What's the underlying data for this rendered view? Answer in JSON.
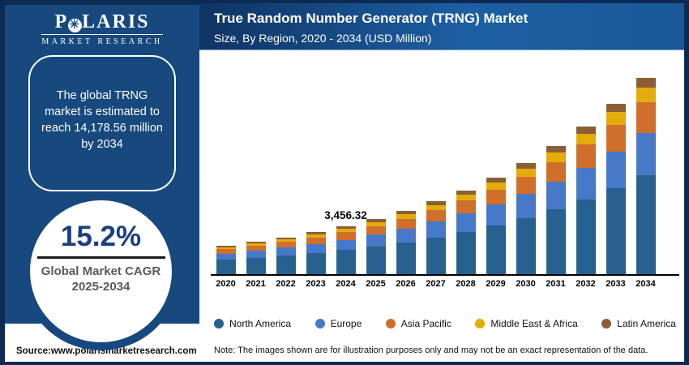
{
  "brand": {
    "logo_p1": "P",
    "logo_star": "✳",
    "logo_p2": "LARIS",
    "logo_subtitle": "MARKET RESEARCH"
  },
  "header": {
    "title": "True Random Number Generator (TRNG) Market",
    "subtitle": "Size, By Region, 2020 - 2034 (USD Million)"
  },
  "sidebar": {
    "callout_text": "The global TRNG market is estimated to reach 14,178.56 million by 2034",
    "cagr_value": "15.2%",
    "cagr_label_line1": "Global Market CAGR",
    "cagr_label_line2": "2025-2034"
  },
  "footer": {
    "source": "Source:www.polarismarketresearch.com",
    "note": "Note: The images shown are for illustration purposes only and may not be an exact representation of the data."
  },
  "colors": {
    "frame": "#0d2b52",
    "sidebar_bg": "#17497e",
    "panel_bg": "#ffffff",
    "banner_gradient_left": "#103463",
    "banner_gradient_right": "#1a5999",
    "cagr_navy": "#1c3f7d",
    "cagr_gray": "#58595b",
    "axis_black": "#000000"
  },
  "chart_data": {
    "type": "bar",
    "stacked": true,
    "title": "True Random Number Generator (TRNG) Market",
    "subtitle": "Size, By Region, 2020 - 2034 (USD Million)",
    "unit": "USD Million",
    "grid": "off",
    "legend_position": "bottom",
    "ylim": [
      0,
      14500
    ],
    "categories": [
      "2020",
      "2021",
      "2022",
      "2023",
      "2024",
      "2025",
      "2026",
      "2027",
      "2028",
      "2029",
      "2030",
      "2031",
      "2032",
      "2033",
      "2034"
    ],
    "totals_est": [
      2046.73,
      2333.27,
      2659.53,
      3031.86,
      3456.32,
      3967.89,
      4571.01,
      5265.8,
      6066.2,
      6988.27,
      8050.49,
      9274.17,
      10683.84,
      12307.78,
      14178.56
    ],
    "annotation": {
      "category": "2024",
      "label": "3,456.32",
      "value": 3456.32
    },
    "stated_cagr_pct": 15.2,
    "stated_2034_total": 14178.56,
    "series": [
      {
        "key": "north-america",
        "name": "North America",
        "color": "#27618f",
        "values": [
          1033.6,
          1178.3,
          1343.06,
          1531.09,
          1745.44,
          2003.78,
          2308.36,
          2659.23,
          3063.43,
          3529.08,
          4065.5,
          4683.46,
          5395.34,
          6215.43,
          7160.17
        ]
      },
      {
        "key": "europe",
        "name": "Europe",
        "color": "#4878c8",
        "values": [
          440.05,
          501.65,
          571.8,
          651.85,
          743.11,
          853.1,
          982.77,
          1132.15,
          1304.23,
          1502.48,
          1730.86,
          1993.95,
          2297.03,
          2646.17,
          3048.39
        ]
      },
      {
        "key": "asia-pacific",
        "name": "Asia Pacific",
        "color": "#d06f2c",
        "values": [
          317.24,
          361.66,
          412.23,
          469.94,
          535.73,
          615.02,
          708.51,
          816.2,
          940.26,
          1083.18,
          1247.83,
          1437.5,
          1655.99,
          1907.71,
          2197.68
        ]
      },
      {
        "key": "middle-east-africa",
        "name": "Middle East & Africa",
        "color": "#e3ac0a",
        "values": [
          153.5,
          175.0,
          199.46,
          227.39,
          259.22,
          297.59,
          342.83,
          394.94,
          454.97,
          524.12,
          603.79,
          695.56,
          801.29,
          923.08,
          1063.39
        ]
      },
      {
        "key": "latin-america",
        "name": "Latin America",
        "color": "#8a5f35",
        "values": [
          102.34,
          116.66,
          132.98,
          151.59,
          172.82,
          198.39,
          228.55,
          263.29,
          303.31,
          349.41,
          402.52,
          463.71,
          534.19,
          615.39,
          708.93
        ]
      }
    ]
  }
}
